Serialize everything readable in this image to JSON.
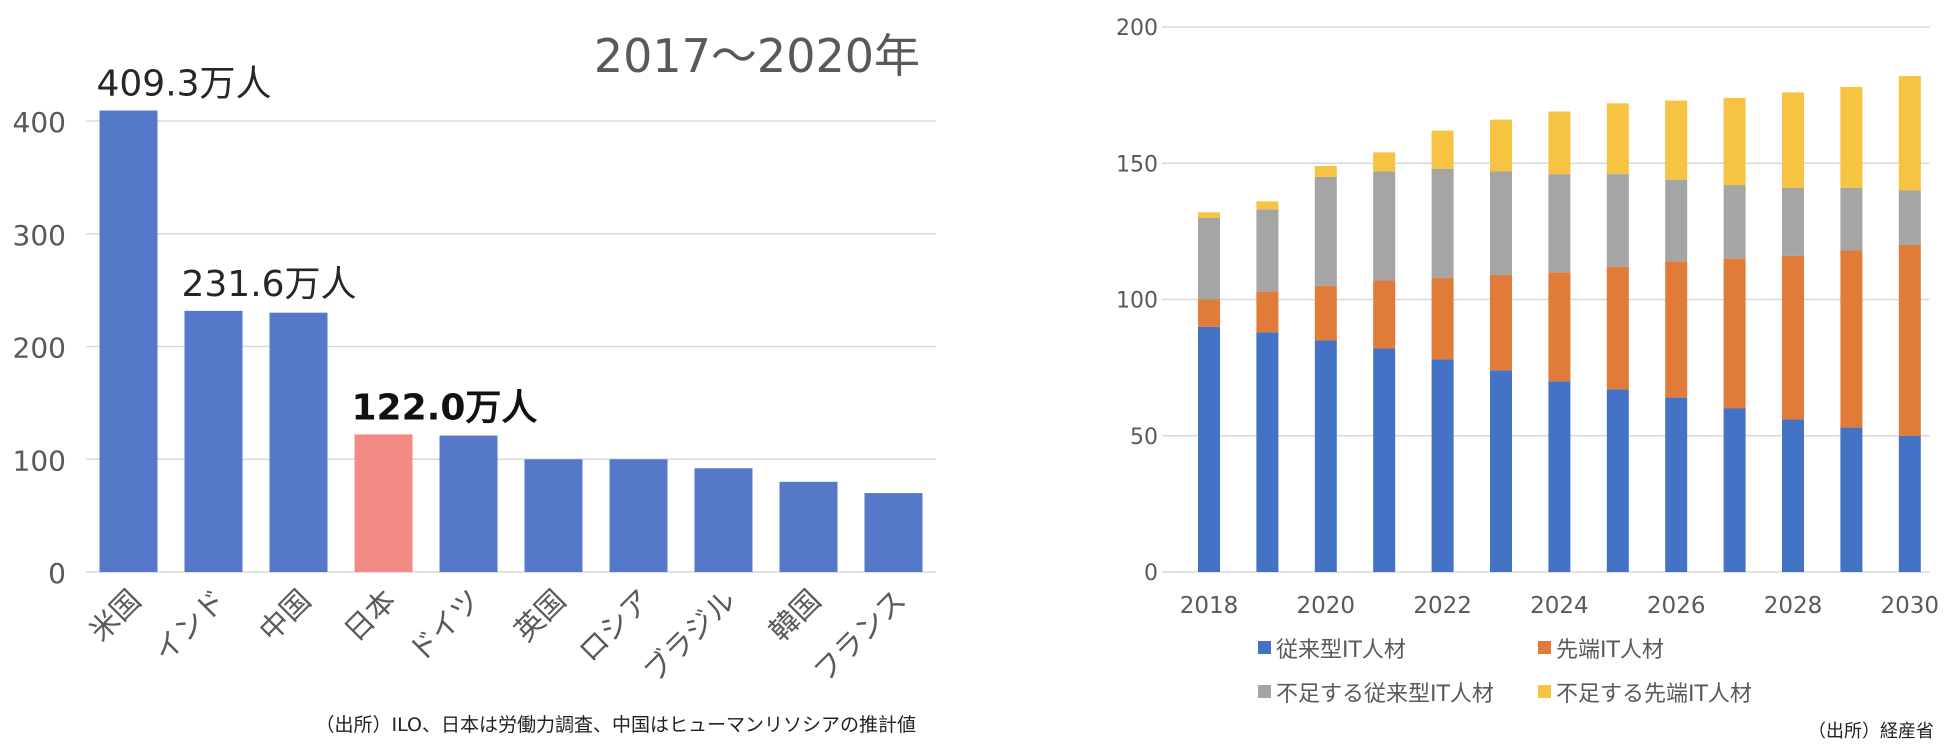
{
  "chart_data": [
    {
      "type": "bar",
      "title": "2017～2020年",
      "categories": [
        "米国",
        "インド",
        "中国",
        "日本",
        "ドイツ",
        "英国",
        "ロシア",
        "ブラジル",
        "韓国",
        "フランス"
      ],
      "values": [
        409.3,
        231.6,
        230,
        122.0,
        121,
        100,
        100,
        92,
        80,
        70
      ],
      "highlight_index": 3,
      "data_labels": [
        {
          "index": 0,
          "text": "409.3万人"
        },
        {
          "index": 1,
          "text": "231.6万人"
        },
        {
          "index": 3,
          "text": "122.0万人",
          "bold": true
        }
      ],
      "y_ticks": [
        0,
        100,
        200,
        300,
        400
      ],
      "ylim": [
        0,
        400
      ],
      "grid": true,
      "colors": {
        "bar": "#5579C8",
        "highlight": "#F28B84",
        "grid": "#D9D9D9",
        "text": "#595959"
      },
      "source": "（出所）ILO、日本は労働力調査、中国はヒューマンリソシアの推計値"
    },
    {
      "type": "bar",
      "stacked": true,
      "x": [
        2018,
        2019,
        2020,
        2021,
        2022,
        2023,
        2024,
        2025,
        2026,
        2027,
        2028,
        2029,
        2030
      ],
      "x_tick_labels": [
        "2018",
        "2020",
        "2022",
        "2024",
        "2026",
        "2028",
        "2030"
      ],
      "series": [
        {
          "name": "従来型IT人材",
          "color": "#4472C4",
          "values": [
            90,
            88,
            85,
            82,
            78,
            74,
            70,
            67,
            64,
            60,
            56,
            53,
            50
          ]
        },
        {
          "name": "先端IT人材",
          "color": "#E07B39",
          "values": [
            10,
            15,
            20,
            25,
            30,
            35,
            40,
            45,
            50,
            55,
            60,
            65,
            70
          ]
        },
        {
          "name": "不足する従来型IT人材",
          "color": "#A5A5A5",
          "values": [
            30,
            30,
            40,
            40,
            40,
            38,
            36,
            34,
            30,
            27,
            25,
            23,
            20
          ]
        },
        {
          "name": "不足する先端IT人材",
          "color": "#F6C342",
          "values": [
            2,
            3,
            4,
            7,
            14,
            19,
            23,
            26,
            29,
            32,
            35,
            37,
            42
          ]
        }
      ],
      "y_ticks": [
        0,
        50,
        100,
        150,
        200
      ],
      "ylim": [
        0,
        200
      ],
      "grid": true,
      "legend_position": "bottom",
      "colors": {
        "grid": "#D9D9D9",
        "text": "#595959"
      },
      "source": "（出所）経産省"
    }
  ]
}
